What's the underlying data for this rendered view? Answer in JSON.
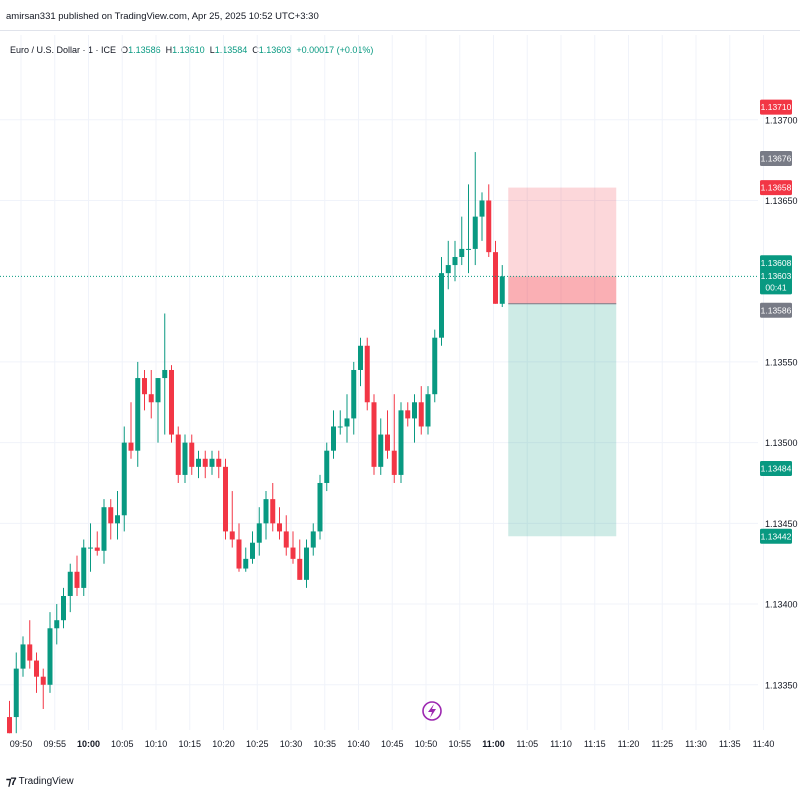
{
  "header": {
    "text": "amirsan331 published on TradingView.com, Apr 25, 2025 10:52 UTC+3:30"
  },
  "legend": {
    "symbol": "Euro / U.S. Dollar · 1 · ICE",
    "o_label": "O",
    "o": "1.13586",
    "h_label": "H",
    "h": "1.13610",
    "l_label": "L",
    "l": "1.13584",
    "c_label": "C",
    "c": "1.13603",
    "change": "+0.00017 (+0.01%)"
  },
  "footer": {
    "brand": "TradingView"
  },
  "colors": {
    "up": "#089981",
    "down": "#f23645",
    "grid": "#f0f3fa",
    "price_line": "#089981",
    "stop_zone": "rgba(242,54,69,0.20)",
    "target_zone": "rgba(8,153,129,0.20)"
  },
  "chart_data": {
    "type": "candlestick",
    "interval_minutes": 1,
    "ylim": [
      1.1332,
      1.1374
    ],
    "y_ticks": [
      "1.13350",
      "1.13400",
      "1.13450",
      "1.13500",
      "1.13550",
      "1.13650",
      "1.13700"
    ],
    "x_ticks": [
      "09:50",
      "09:55",
      "10:00",
      "10:05",
      "10:10",
      "10:15",
      "10:20",
      "10:25",
      "10:30",
      "10:35",
      "10:40",
      "10:45",
      "10:50",
      "10:55",
      "11:00",
      "11:05",
      "11:10",
      "11:15",
      "11:20",
      "11:25",
      "11:30",
      "11:35",
      "11:40"
    ],
    "bold_x_ticks": [
      "10:00",
      "11:00"
    ],
    "candles": [
      {
        "o": 1.1333,
        "h": 1.1334,
        "l": 1.1332,
        "c": 1.1332
      },
      {
        "o": 1.1333,
        "h": 1.1337,
        "l": 1.1332,
        "c": 1.1336
      },
      {
        "o": 1.1336,
        "h": 1.1338,
        "l": 1.13355,
        "c": 1.13375
      },
      {
        "o": 1.13375,
        "h": 1.1339,
        "l": 1.1336,
        "c": 1.13365
      },
      {
        "o": 1.13365,
        "h": 1.1337,
        "l": 1.13345,
        "c": 1.13355
      },
      {
        "o": 1.13355,
        "h": 1.1336,
        "l": 1.13335,
        "c": 1.1335
      },
      {
        "o": 1.1335,
        "h": 1.13395,
        "l": 1.13345,
        "c": 1.13385
      },
      {
        "o": 1.13385,
        "h": 1.134,
        "l": 1.13375,
        "c": 1.1339
      },
      {
        "o": 1.1339,
        "h": 1.1341,
        "l": 1.13385,
        "c": 1.13405
      },
      {
        "o": 1.13405,
        "h": 1.13425,
        "l": 1.13395,
        "c": 1.1342
      },
      {
        "o": 1.1342,
        "h": 1.1343,
        "l": 1.13405,
        "c": 1.1341
      },
      {
        "o": 1.1341,
        "h": 1.1344,
        "l": 1.13405,
        "c": 1.13435
      },
      {
        "o": 1.13435,
        "h": 1.1345,
        "l": 1.1342,
        "c": 1.13435
      },
      {
        "o": 1.13435,
        "h": 1.13445,
        "l": 1.1343,
        "c": 1.13433
      },
      {
        "o": 1.13433,
        "h": 1.13465,
        "l": 1.13425,
        "c": 1.1346
      },
      {
        "o": 1.1346,
        "h": 1.13465,
        "l": 1.1344,
        "c": 1.1345
      },
      {
        "o": 1.1345,
        "h": 1.1347,
        "l": 1.1344,
        "c": 1.13455
      },
      {
        "o": 1.13455,
        "h": 1.1351,
        "l": 1.13445,
        "c": 1.135
      },
      {
        "o": 1.135,
        "h": 1.13525,
        "l": 1.1349,
        "c": 1.13495
      },
      {
        "o": 1.13495,
        "h": 1.1355,
        "l": 1.13485,
        "c": 1.1354
      },
      {
        "o": 1.1354,
        "h": 1.13545,
        "l": 1.1352,
        "c": 1.1353
      },
      {
        "o": 1.1353,
        "h": 1.13545,
        "l": 1.13515,
        "c": 1.13525
      },
      {
        "o": 1.13525,
        "h": 1.1354,
        "l": 1.135,
        "c": 1.1354
      },
      {
        "o": 1.1354,
        "h": 1.1358,
        "l": 1.13505,
        "c": 1.13545
      },
      {
        "o": 1.13545,
        "h": 1.13548,
        "l": 1.135,
        "c": 1.13505
      },
      {
        "o": 1.13505,
        "h": 1.1351,
        "l": 1.13475,
        "c": 1.1348
      },
      {
        "o": 1.1348,
        "h": 1.13505,
        "l": 1.13475,
        "c": 1.135
      },
      {
        "o": 1.135,
        "h": 1.13505,
        "l": 1.1348,
        "c": 1.13485
      },
      {
        "o": 1.13485,
        "h": 1.13495,
        "l": 1.13478,
        "c": 1.1349
      },
      {
        "o": 1.1349,
        "h": 1.13495,
        "l": 1.13478,
        "c": 1.13485
      },
      {
        "o": 1.13485,
        "h": 1.13495,
        "l": 1.1348,
        "c": 1.1349
      },
      {
        "o": 1.1349,
        "h": 1.13495,
        "l": 1.13478,
        "c": 1.13485
      },
      {
        "o": 1.13485,
        "h": 1.1349,
        "l": 1.1344,
        "c": 1.13445
      },
      {
        "o": 1.13445,
        "h": 1.1347,
        "l": 1.13435,
        "c": 1.1344
      },
      {
        "o": 1.1344,
        "h": 1.1345,
        "l": 1.1342,
        "c": 1.13422
      },
      {
        "o": 1.13422,
        "h": 1.13435,
        "l": 1.1342,
        "c": 1.13428
      },
      {
        "o": 1.13428,
        "h": 1.13445,
        "l": 1.13425,
        "c": 1.13438
      },
      {
        "o": 1.13438,
        "h": 1.1346,
        "l": 1.1343,
        "c": 1.1345
      },
      {
        "o": 1.1345,
        "h": 1.1347,
        "l": 1.1344,
        "c": 1.13465
      },
      {
        "o": 1.13465,
        "h": 1.13475,
        "l": 1.13445,
        "c": 1.1345
      },
      {
        "o": 1.1345,
        "h": 1.1346,
        "l": 1.1344,
        "c": 1.13445
      },
      {
        "o": 1.13445,
        "h": 1.13455,
        "l": 1.1343,
        "c": 1.13435
      },
      {
        "o": 1.13435,
        "h": 1.13445,
        "l": 1.13425,
        "c": 1.13428
      },
      {
        "o": 1.13428,
        "h": 1.1344,
        "l": 1.13415,
        "c": 1.13415
      },
      {
        "o": 1.13415,
        "h": 1.1344,
        "l": 1.1341,
        "c": 1.13435
      },
      {
        "o": 1.13435,
        "h": 1.1345,
        "l": 1.1343,
        "c": 1.13445
      },
      {
        "o": 1.13445,
        "h": 1.1348,
        "l": 1.1344,
        "c": 1.13475
      },
      {
        "o": 1.13475,
        "h": 1.135,
        "l": 1.1347,
        "c": 1.13495
      },
      {
        "o": 1.13495,
        "h": 1.1352,
        "l": 1.1349,
        "c": 1.1351
      },
      {
        "o": 1.1351,
        "h": 1.1352,
        "l": 1.13505,
        "c": 1.1351
      },
      {
        "o": 1.1351,
        "h": 1.1353,
        "l": 1.135,
        "c": 1.13515
      },
      {
        "o": 1.13515,
        "h": 1.1355,
        "l": 1.13505,
        "c": 1.13545
      },
      {
        "o": 1.13545,
        "h": 1.13565,
        "l": 1.13535,
        "c": 1.1356
      },
      {
        "o": 1.1356,
        "h": 1.13565,
        "l": 1.1352,
        "c": 1.13525
      },
      {
        "o": 1.13525,
        "h": 1.1353,
        "l": 1.1348,
        "c": 1.13485
      },
      {
        "o": 1.13485,
        "h": 1.13515,
        "l": 1.1348,
        "c": 1.13505
      },
      {
        "o": 1.13505,
        "h": 1.1352,
        "l": 1.1349,
        "c": 1.13495
      },
      {
        "o": 1.13495,
        "h": 1.1353,
        "l": 1.13475,
        "c": 1.1348
      },
      {
        "o": 1.1348,
        "h": 1.13525,
        "l": 1.13475,
        "c": 1.1352
      },
      {
        "o": 1.1352,
        "h": 1.13525,
        "l": 1.1351,
        "c": 1.13515
      },
      {
        "o": 1.13515,
        "h": 1.1353,
        "l": 1.135,
        "c": 1.13525
      },
      {
        "o": 1.13525,
        "h": 1.13535,
        "l": 1.13505,
        "c": 1.1351
      },
      {
        "o": 1.1351,
        "h": 1.13535,
        "l": 1.13505,
        "c": 1.1353
      },
      {
        "o": 1.1353,
        "h": 1.1357,
        "l": 1.13525,
        "c": 1.13565
      },
      {
        "o": 1.13565,
        "h": 1.13615,
        "l": 1.1356,
        "c": 1.13605
      },
      {
        "o": 1.13605,
        "h": 1.13625,
        "l": 1.13595,
        "c": 1.1361
      },
      {
        "o": 1.1361,
        "h": 1.13625,
        "l": 1.136,
        "c": 1.13615
      },
      {
        "o": 1.13615,
        "h": 1.1364,
        "l": 1.1361,
        "c": 1.1362
      },
      {
        "o": 1.1362,
        "h": 1.1366,
        "l": 1.13605,
        "c": 1.1362
      },
      {
        "o": 1.1362,
        "h": 1.1368,
        "l": 1.1361,
        "c": 1.1364
      },
      {
        "o": 1.1364,
        "h": 1.13655,
        "l": 1.13625,
        "c": 1.1365
      },
      {
        "o": 1.1365,
        "h": 1.1366,
        "l": 1.13615,
        "c": 1.13618
      },
      {
        "o": 1.13618,
        "h": 1.13625,
        "l": 1.13586,
        "c": 1.13586
      },
      {
        "o": 1.13586,
        "h": 1.1361,
        "l": 1.13584,
        "c": 1.13603
      }
    ],
    "position": {
      "type": "short",
      "entry": 1.13586,
      "stop": 1.13658,
      "target": 1.13442,
      "start_index": 73,
      "end_index": 89
    },
    "price_labels": [
      {
        "text": "1.13710",
        "value": 1.1371,
        "color": "#f23645",
        "kind": "high"
      },
      {
        "text": "1.13676",
        "value": 1.13676,
        "color": "#787b86",
        "kind": "marker"
      },
      {
        "text": "1.13658",
        "value": 1.13658,
        "color": "#f23645",
        "kind": "stop"
      },
      {
        "text": "1.13608",
        "value": 1.13608,
        "color": "#089981",
        "kind": "bid"
      },
      {
        "text": "1.13603",
        "value": 1.13603,
        "color": "#089981",
        "kind": "last",
        "sub": "00:41"
      },
      {
        "text": "1.13586",
        "value": 1.13586,
        "color": "#787b86",
        "kind": "entry"
      },
      {
        "text": "1.13484",
        "value": 1.13484,
        "color": "#089981",
        "kind": "marker"
      },
      {
        "text": "1.13442",
        "value": 1.13442,
        "color": "#089981",
        "kind": "target"
      }
    ]
  }
}
